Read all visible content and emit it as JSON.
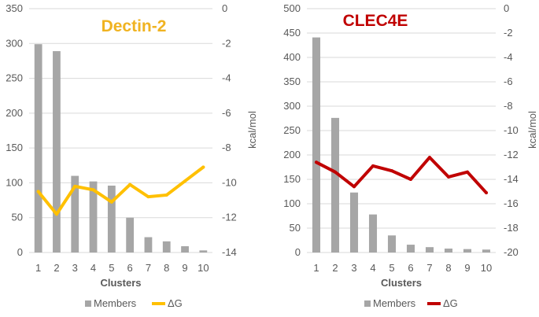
{
  "colors": {
    "members": "#a6a6a6",
    "dectin_line": "#ffc000",
    "dectin_title": "#f0b321",
    "clec_line": "#c00000",
    "clec_title": "#c00000"
  },
  "chart_data": [
    {
      "type": "bar+line",
      "title": "Dectin-2",
      "xlabel": "Clusters",
      "ylabel_right": "kcal/mol",
      "categories": [
        "1",
        "2",
        "3",
        "4",
        "5",
        "6",
        "7",
        "8",
        "9",
        "10"
      ],
      "ylim_left": [
        0,
        350
      ],
      "yticks_left": [
        "0",
        "50",
        "100",
        "150",
        "200",
        "250",
        "300",
        "350"
      ],
      "ylim_right": [
        -14,
        0
      ],
      "yticks_right": [
        "-14",
        "-12",
        "-10",
        "-8",
        "-6",
        "-4",
        "-2",
        "0"
      ],
      "grid": true,
      "legend_position": "bottom",
      "series": [
        {
          "name": "Members",
          "type": "bar",
          "axis": "left",
          "color": "#a6a6a6",
          "values": [
            299,
            289,
            110,
            102,
            96,
            50,
            22,
            16,
            9,
            3
          ]
        },
        {
          "name": "ΔG",
          "type": "line",
          "axis": "right",
          "color": "#ffc000",
          "values": [
            -10.5,
            -11.8,
            -10.2,
            -10.4,
            -11.1,
            -10.1,
            -10.8,
            -10.7,
            -9.9,
            -9.1
          ]
        }
      ]
    },
    {
      "type": "bar+line",
      "title": "CLEC4E",
      "xlabel": "Clusters",
      "ylabel_right": "kcal/mol",
      "categories": [
        "1",
        "2",
        "3",
        "4",
        "5",
        "6",
        "7",
        "8",
        "9",
        "10"
      ],
      "ylim_left": [
        0,
        500
      ],
      "yticks_left": [
        "0",
        "50",
        "100",
        "150",
        "200",
        "250",
        "300",
        "350",
        "400",
        "450",
        "500"
      ],
      "ylim_right": [
        -20,
        0
      ],
      "yticks_right": [
        "-20",
        "-18",
        "-16",
        "-14",
        "-12",
        "-10",
        "-8",
        "-6",
        "-4",
        "-2",
        "0"
      ],
      "grid": true,
      "legend_position": "bottom",
      "series": [
        {
          "name": "Members",
          "type": "bar",
          "axis": "left",
          "color": "#a6a6a6",
          "values": [
            441,
            276,
            123,
            78,
            35,
            16,
            11,
            8,
            7,
            6
          ]
        },
        {
          "name": "ΔG",
          "type": "line",
          "axis": "right",
          "color": "#c00000",
          "values": [
            -12.6,
            -13.4,
            -14.6,
            -12.9,
            -13.3,
            -14.0,
            -12.2,
            -13.8,
            -13.4,
            -15.1
          ]
        }
      ]
    }
  ]
}
